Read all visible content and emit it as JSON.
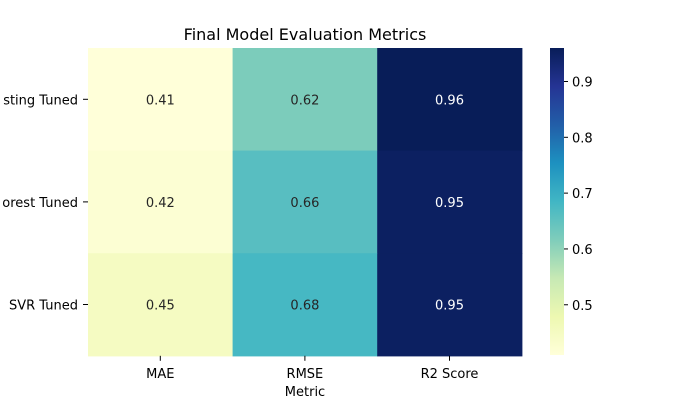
{
  "chart_data": {
    "type": "heatmap",
    "title": "Final Model Evaluation Metrics",
    "xlabel": "Metric",
    "ylabel": "",
    "x_categories": [
      "MAE",
      "RMSE",
      "R2 Score"
    ],
    "y_categories_visible": [
      "sting Tuned",
      "orest Tuned",
      "SVR Tuned"
    ],
    "values": [
      [
        0.41,
        0.62,
        0.96
      ],
      [
        0.42,
        0.66,
        0.95
      ],
      [
        0.45,
        0.68,
        0.95
      ]
    ],
    "value_labels": [
      [
        "0.41",
        "0.62",
        "0.96"
      ],
      [
        "0.42",
        "0.66",
        "0.95"
      ],
      [
        "0.45",
        "0.68",
        "0.95"
      ]
    ],
    "colormap": "YlGnBu",
    "colorbar": {
      "range": [
        0.41,
        0.96
      ],
      "ticks": [
        0.5,
        0.6,
        0.7,
        0.8,
        0.9
      ],
      "tick_labels": [
        "0.5",
        "0.6",
        "0.7",
        "0.8",
        "0.9"
      ]
    },
    "grid": false,
    "legend": "colorbar-right"
  }
}
